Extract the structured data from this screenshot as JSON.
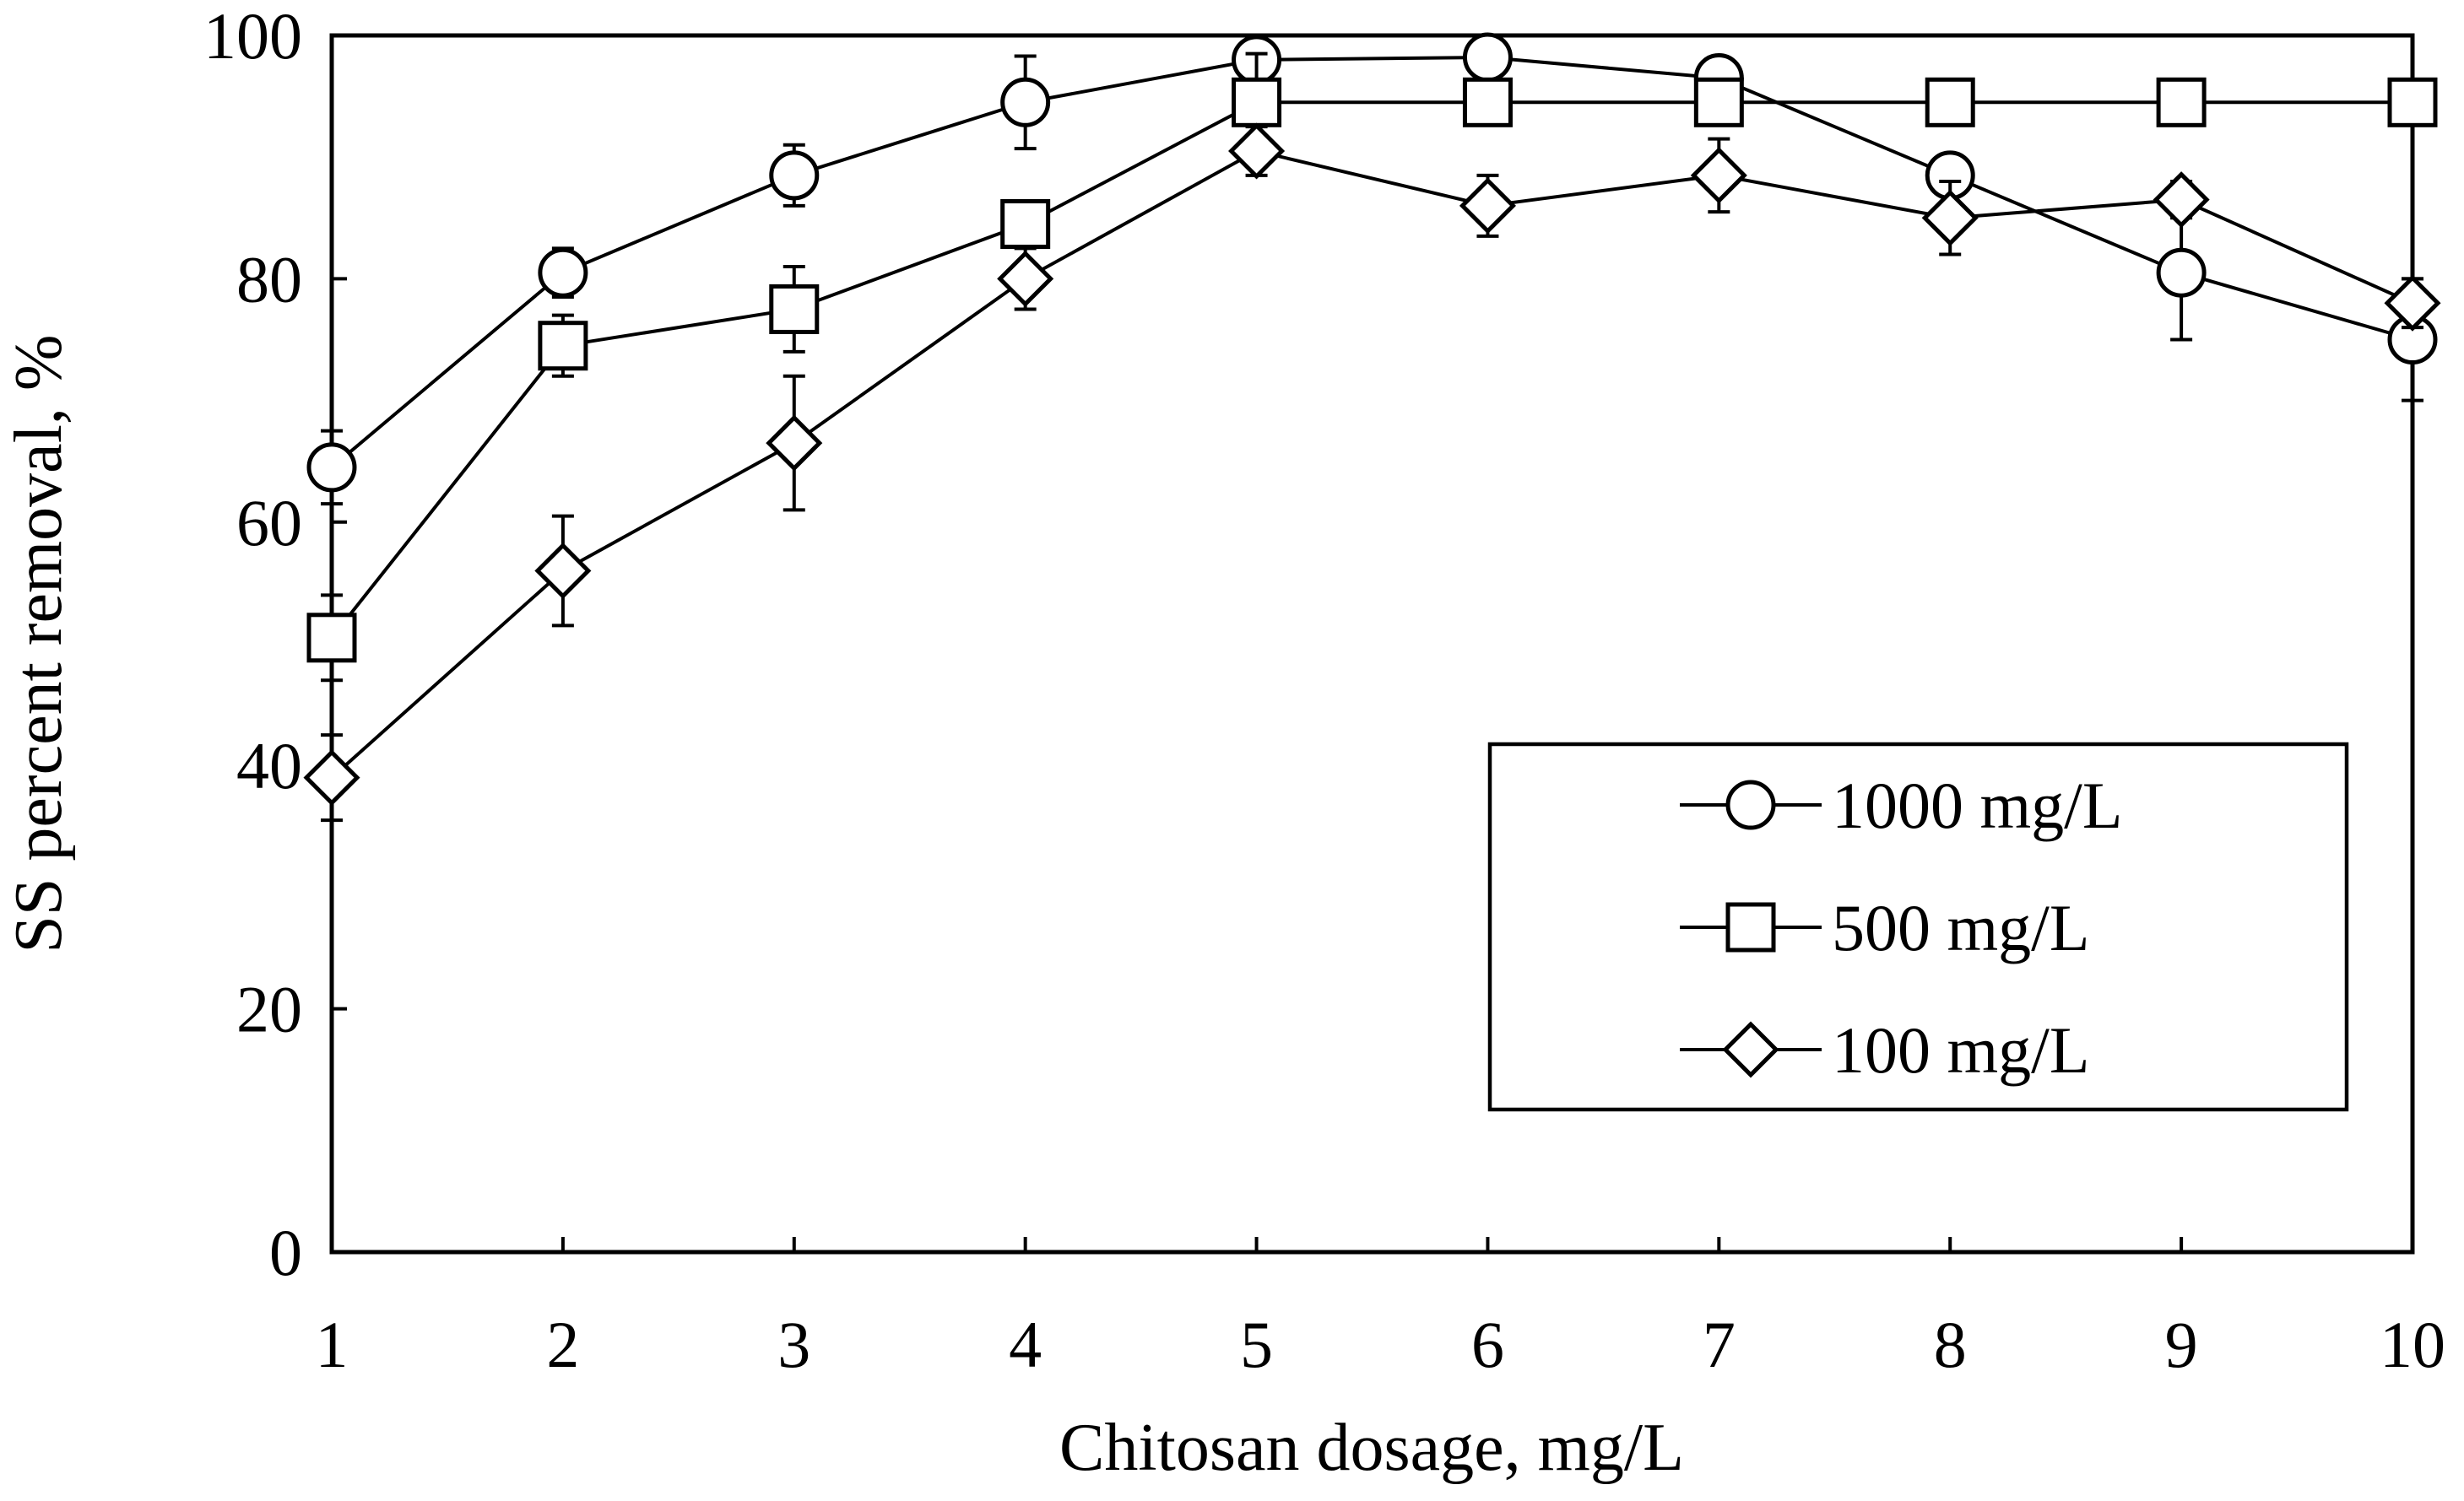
{
  "chart_data": {
    "type": "line",
    "title": "",
    "xlabel": "Chitosan dosage, mg/L",
    "ylabel": "SS percent removal, %",
    "x": [
      1,
      2,
      3,
      4,
      5,
      6,
      7,
      8,
      9,
      10
    ],
    "xlim": [
      1,
      10
    ],
    "ylim": [
      0,
      100
    ],
    "xticks": [
      "1",
      "2",
      "3",
      "4",
      "5",
      "6",
      "7",
      "8",
      "9",
      "10"
    ],
    "yticks": [
      "0",
      "20",
      "40",
      "60",
      "80",
      "100"
    ],
    "grid": false,
    "legend_position": "center-right",
    "series": [
      {
        "name": "1000 mg/L",
        "marker": "circle",
        "values": [
          64.5,
          80.5,
          88.5,
          94.5,
          98.0,
          98.2,
          96.5,
          88.5,
          80.5,
          75.0
        ],
        "errors": [
          3.0,
          2.0,
          2.5,
          3.8,
          1.0,
          1.0,
          1.2,
          1.5,
          5.5,
          5.0
        ]
      },
      {
        "name": "500 mg/L",
        "marker": "square",
        "values": [
          50.5,
          74.5,
          77.5,
          84.5,
          94.5,
          94.5,
          94.5,
          94.5,
          94.5,
          94.5
        ],
        "errors": [
          3.5,
          2.5,
          3.5,
          1.5,
          4.0,
          1.0,
          1.5,
          1.5,
          1.5,
          0.5
        ]
      },
      {
        "name": "100 mg/L",
        "marker": "diamond",
        "values": [
          39.0,
          56.0,
          66.5,
          80.0,
          90.5,
          86.0,
          88.5,
          85.0,
          86.5,
          78.0
        ],
        "errors": [
          3.5,
          4.5,
          5.5,
          2.5,
          2.0,
          2.5,
          3.0,
          3.0,
          1.5,
          2.0
        ]
      }
    ]
  }
}
